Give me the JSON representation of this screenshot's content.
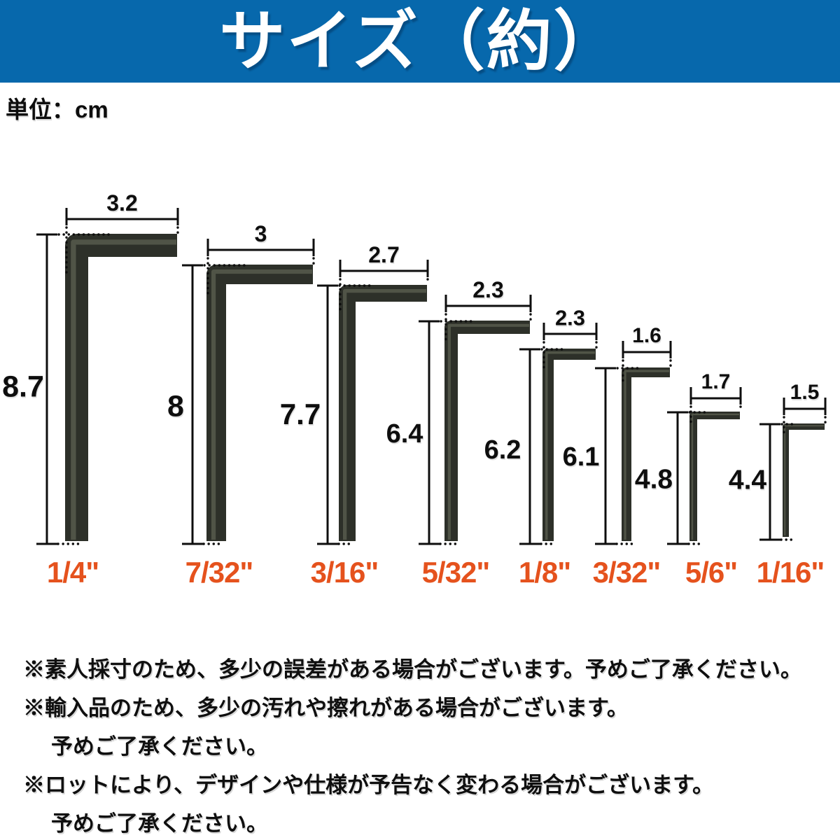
{
  "header": {
    "title": "サイズ（約）"
  },
  "unit_label": "単位：cm",
  "colors": {
    "banner_bg": "#0768ac",
    "banner_text": "#ffffff",
    "size_label": "#e5521d",
    "wrench_dark": "#25281f",
    "wrench_mid": "#2d3029",
    "wrench_highlight": "#6d7261",
    "dimension_line": "#0e0e0e"
  },
  "wrenches": [
    {
      "size_label": "1/4\"",
      "width_cm": "3.2",
      "height_cm": "8.7"
    },
    {
      "size_label": "7/32\"",
      "width_cm": "3",
      "height_cm": "8"
    },
    {
      "size_label": "3/16\"",
      "width_cm": "2.7",
      "height_cm": "7.7"
    },
    {
      "size_label": "5/32\"",
      "width_cm": "2.3",
      "height_cm": "6.4"
    },
    {
      "size_label": "1/8\"",
      "width_cm": "2.3",
      "height_cm": "6.2"
    },
    {
      "size_label": "3/32\"",
      "width_cm": "1.6",
      "height_cm": "6.1"
    },
    {
      "size_label": "5/6\"",
      "width_cm": "1.7",
      "height_cm": "4.8"
    },
    {
      "size_label": "1/16\"",
      "width_cm": "1.5",
      "height_cm": "4.4"
    }
  ],
  "notes": [
    {
      "text": "※素人採寸のため、多少の誤差がある場合がございます。予めご了承ください。",
      "indent": false
    },
    {
      "text": "※輸入品のため、多少の汚れや擦れがある場合がございます。",
      "indent": false
    },
    {
      "text": "予めご了承ください。",
      "indent": true
    },
    {
      "text": "※ロットにより、デザインや仕様が予告なく変わる場合がございます。",
      "indent": false
    },
    {
      "text": "予めご了承ください。",
      "indent": true
    }
  ]
}
